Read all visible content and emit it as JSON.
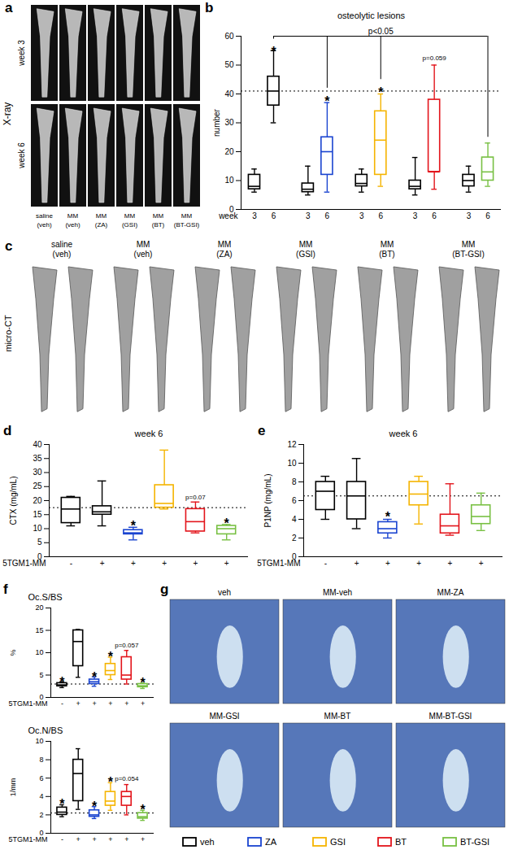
{
  "figure": {
    "panels": {
      "a": {
        "label": "a",
        "side_label": "X-ray",
        "rows": [
          "week 3",
          "week 6"
        ],
        "columns": [
          "saline (veh)",
          "MM (veh)",
          "MM (ZA)",
          "MM (GSI)",
          "MM (BT)",
          "MM (BT-GSI)"
        ]
      },
      "c": {
        "label": "c",
        "side_label": "micro-CT",
        "columns": [
          "saline (veh)",
          "MM (veh)",
          "MM (ZA)",
          "MM (GSI)",
          "MM (BT)",
          "MM (BT-GSI)"
        ]
      },
      "g": {
        "label": "g",
        "images": [
          "veh",
          "MM-veh",
          "MM-ZA",
          "MM-GSI",
          "MM-BT",
          "MM-BT-GSI"
        ]
      }
    },
    "legend_entries": [
      {
        "name": "veh",
        "color": "#000000"
      },
      {
        "name": "ZA",
        "color": "#1a44d0"
      },
      {
        "name": "GSI",
        "color": "#f5b400"
      },
      {
        "name": "BT",
        "color": "#e3141b"
      },
      {
        "name": "BT-GSI",
        "color": "#78c043"
      }
    ]
  },
  "chart_data": [
    {
      "type": "box",
      "panel": "b",
      "title": "osteolytic lesions",
      "y_label": "number",
      "x_label": "week",
      "categories": [
        "3",
        "6",
        "3",
        "6",
        "3",
        "6",
        "3",
        "6",
        "3",
        "6"
      ],
      "colors": [
        "#000000",
        "#000000",
        "#000000",
        "#1a44d0",
        "#000000",
        "#f5b400",
        "#000000",
        "#e3141b",
        "#000000",
        "#78c043"
      ],
      "boxes": [
        {
          "min": 6,
          "q1": 7,
          "median": 8,
          "q3": 12,
          "max": 14
        },
        {
          "min": 30,
          "q1": 36,
          "median": 41,
          "q3": 46,
          "max": 55
        },
        {
          "min": 5,
          "q1": 6,
          "median": 7,
          "q3": 9,
          "max": 15
        },
        {
          "min": 6,
          "q1": 12,
          "median": 20,
          "q3": 25,
          "max": 37
        },
        {
          "min": 6,
          "q1": 8,
          "median": 9,
          "q3": 12,
          "max": 14
        },
        {
          "min": 8,
          "q1": 12,
          "median": 24,
          "q3": 34,
          "max": 40
        },
        {
          "min": 5,
          "q1": 7,
          "median": 8,
          "q3": 10,
          "max": 18
        },
        {
          "min": 7,
          "q1": 13,
          "median": 13,
          "q3": 38,
          "max": 50
        },
        {
          "min": 6,
          "q1": 8,
          "median": 10,
          "q3": 12,
          "max": 15
        },
        {
          "min": 8,
          "q1": 10,
          "median": 13,
          "q3": 18,
          "max": 23
        }
      ],
      "reference_line": 41,
      "ylim": [
        0,
        60
      ],
      "yticks": [
        0,
        10,
        20,
        30,
        40,
        50,
        60
      ],
      "annotations": [
        {
          "index": 1,
          "y": 55,
          "label": "*"
        },
        {
          "index": 3,
          "y": 38,
          "label": "*"
        },
        {
          "index": 5,
          "y": 41,
          "label": "*"
        },
        {
          "index": 7,
          "y": 51,
          "label": "p=0.059"
        }
      ],
      "bracket": {
        "label": "p<0.05",
        "y": 60,
        "indices": [
          1,
          3,
          5,
          9
        ],
        "ends": [
          59,
          42,
          45,
          25
        ]
      }
    },
    {
      "type": "box",
      "panel": "d",
      "title": "week 6",
      "y_label": "CTX (mg/mL)",
      "x_label": "5TGM1-MM",
      "categories": [
        "-",
        "+",
        "+",
        "+",
        "+",
        "+"
      ],
      "colors": [
        "#000000",
        "#000000",
        "#1a44d0",
        "#f5b400",
        "#e3141b",
        "#78c043"
      ],
      "boxes": [
        {
          "min": 11,
          "q1": 12,
          "median": 17,
          "q3": 21,
          "max": 21.5
        },
        {
          "min": 11,
          "q1": 15,
          "median": 16,
          "q3": 18,
          "max": 27
        },
        {
          "min": 6,
          "q1": 8,
          "median": 8.5,
          "q3": 9.5,
          "max": 10.5
        },
        {
          "min": 17,
          "q1": 17.5,
          "median": 19,
          "q3": 25.5,
          "max": 38
        },
        {
          "min": 8.5,
          "q1": 9,
          "median": 12.5,
          "q3": 17,
          "max": 19.5
        },
        {
          "min": 6,
          "q1": 8,
          "median": 10,
          "q3": 11,
          "max": 11.5
        }
      ],
      "reference_line": 17.5,
      "ylim": [
        0,
        40
      ],
      "yticks": [
        0,
        5,
        10,
        15,
        20,
        25,
        30,
        35,
        40
      ],
      "annotations": [
        {
          "index": 2,
          "y": 11.5,
          "label": "*"
        },
        {
          "index": 4,
          "y": 20,
          "label": "p=0.07"
        },
        {
          "index": 5,
          "y": 12.5,
          "label": "*"
        }
      ]
    },
    {
      "type": "box",
      "panel": "e",
      "title": "week 6",
      "y_label": "P1NP (mg/mL)",
      "x_label": "5TGM1-MM",
      "categories": [
        "-",
        "+",
        "+",
        "+",
        "+",
        "+"
      ],
      "colors": [
        "#000000",
        "#000000",
        "#1a44d0",
        "#f5b400",
        "#e3141b",
        "#78c043"
      ],
      "boxes": [
        {
          "min": 4,
          "q1": 5,
          "median": 7,
          "q3": 8,
          "max": 8.6
        },
        {
          "min": 3,
          "q1": 4,
          "median": 6.5,
          "q3": 8,
          "max": 10.5
        },
        {
          "min": 2,
          "q1": 2.5,
          "median": 3,
          "q3": 3.7,
          "max": 4
        },
        {
          "min": 3.5,
          "q1": 5.5,
          "median": 6.7,
          "q3": 8,
          "max": 8.6
        },
        {
          "min": 2.3,
          "q1": 2.5,
          "median": 3.3,
          "q3": 4.5,
          "max": 7.8
        },
        {
          "min": 2.8,
          "q1": 3.5,
          "median": 4.3,
          "q3": 5.5,
          "max": 6.8
        }
      ],
      "reference_line": 6.5,
      "ylim": [
        0,
        12
      ],
      "yticks": [
        0,
        2,
        4,
        6,
        8,
        10,
        12
      ],
      "annotations": [
        {
          "index": 2,
          "y": 4.4,
          "label": "*"
        }
      ]
    },
    {
      "type": "box",
      "panel": "f",
      "title": "Oc.S/BS",
      "y_label": "%",
      "x_label": "5TGM1-MM",
      "categories": [
        "-",
        "+",
        "+",
        "+",
        "+",
        "+"
      ],
      "colors": [
        "#000000",
        "#000000",
        "#1a44d0",
        "#f5b400",
        "#e3141b",
        "#78c043"
      ],
      "boxes": [
        {
          "min": 2.2,
          "q1": 2.5,
          "median": 2.8,
          "q3": 3.2,
          "max": 3.5
        },
        {
          "min": 4.5,
          "q1": 7,
          "median": 12.5,
          "q3": 15,
          "max": 15.2
        },
        {
          "min": 2.5,
          "q1": 3,
          "median": 3.5,
          "q3": 4,
          "max": 4.6
        },
        {
          "min": 4,
          "q1": 5,
          "median": 6,
          "q3": 7.5,
          "max": 9
        },
        {
          "min": 3,
          "q1": 4,
          "median": 5,
          "q3": 9,
          "max": 10.5
        },
        {
          "min": 2,
          "q1": 2.3,
          "median": 2.6,
          "q3": 3,
          "max": 3.2
        }
      ],
      "reference_line": 3,
      "ylim": [
        0,
        20
      ],
      "yticks": [
        0,
        5,
        10,
        15,
        20
      ],
      "annotations": [
        {
          "index": 0,
          "y": 3.8,
          "label": "*"
        },
        {
          "index": 2,
          "y": 4.9,
          "label": "*"
        },
        {
          "index": 3,
          "y": 9.3,
          "label": "*"
        },
        {
          "index": 4,
          "y": 10.8,
          "label": "p=0.057"
        },
        {
          "index": 5,
          "y": 3.5,
          "label": "*"
        }
      ]
    },
    {
      "type": "box",
      "title": "Oc.N/BS",
      "y_label": "1/mm",
      "x_label": "5TGM1-MM",
      "categories": [
        "-",
        "+",
        "+",
        "+",
        "+",
        "+"
      ],
      "colors": [
        "#000000",
        "#000000",
        "#1a44d0",
        "#f5b400",
        "#e3141b",
        "#78c043"
      ],
      "boxes": [
        {
          "min": 1.8,
          "q1": 2,
          "median": 2.3,
          "q3": 2.8,
          "max": 3.1
        },
        {
          "min": 2.6,
          "q1": 3.5,
          "median": 6.5,
          "q3": 8,
          "max": 9.2
        },
        {
          "min": 1.6,
          "q1": 1.8,
          "median": 2,
          "q3": 2.5,
          "max": 2.9
        },
        {
          "min": 2.5,
          "q1": 3,
          "median": 3.5,
          "q3": 4.5,
          "max": 5.5
        },
        {
          "min": 2,
          "q1": 3,
          "median": 4,
          "q3": 4.5,
          "max": 5.3
        },
        {
          "min": 1.4,
          "q1": 1.6,
          "median": 1.8,
          "q3": 2.2,
          "max": 2.5
        }
      ],
      "reference_line": 2.2,
      "ylim": [
        0,
        10
      ],
      "yticks": [
        0,
        2,
        4,
        6,
        8,
        10
      ],
      "annotations": [
        {
          "index": 0,
          "y": 3.3,
          "label": "*"
        },
        {
          "index": 2,
          "y": 3.1,
          "label": "*"
        },
        {
          "index": 3,
          "y": 5.7,
          "label": "*"
        },
        {
          "index": 4,
          "y": 5.5,
          "label": "p=0.054"
        },
        {
          "index": 5,
          "y": 2.7,
          "label": "*"
        }
      ]
    }
  ]
}
